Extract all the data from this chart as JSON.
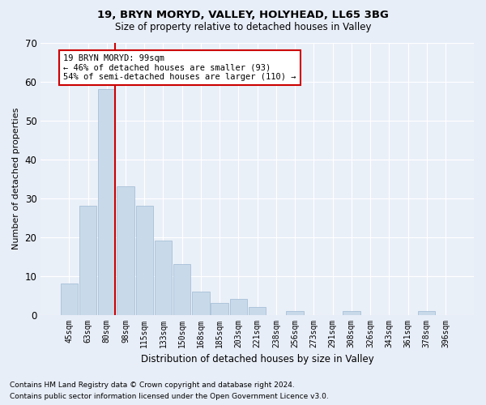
{
  "title1": "19, BRYN MORYD, VALLEY, HOLYHEAD, LL65 3BG",
  "title2": "Size of property relative to detached houses in Valley",
  "xlabel": "Distribution of detached houses by size in Valley",
  "ylabel": "Number of detached properties",
  "categories": [
    "45sqm",
    "63sqm",
    "80sqm",
    "98sqm",
    "115sqm",
    "133sqm",
    "150sqm",
    "168sqm",
    "185sqm",
    "203sqm",
    "221sqm",
    "238sqm",
    "256sqm",
    "273sqm",
    "291sqm",
    "308sqm",
    "326sqm",
    "343sqm",
    "361sqm",
    "378sqm",
    "396sqm"
  ],
  "values": [
    8,
    28,
    58,
    33,
    28,
    19,
    13,
    6,
    3,
    4,
    2,
    0,
    1,
    0,
    0,
    1,
    0,
    0,
    0,
    1,
    0
  ],
  "bar_color": "#c8daea",
  "bar_edge_color": "#a8c0d8",
  "property_line_bin_index": 2,
  "property_line_color": "#cc0000",
  "annotation_text": "19 BRYN MORYD: 99sqm\n← 46% of detached houses are smaller (93)\n54% of semi-detached houses are larger (110) →",
  "annotation_box_color": "#ffffff",
  "annotation_box_edge": "#cc0000",
  "ylim": [
    0,
    70
  ],
  "yticks": [
    0,
    10,
    20,
    30,
    40,
    50,
    60,
    70
  ],
  "footnote1": "Contains HM Land Registry data © Crown copyright and database right 2024.",
  "footnote2": "Contains public sector information licensed under the Open Government Licence v3.0.",
  "bg_color": "#e8eef8",
  "plot_bg_color": "#eaf0f8"
}
